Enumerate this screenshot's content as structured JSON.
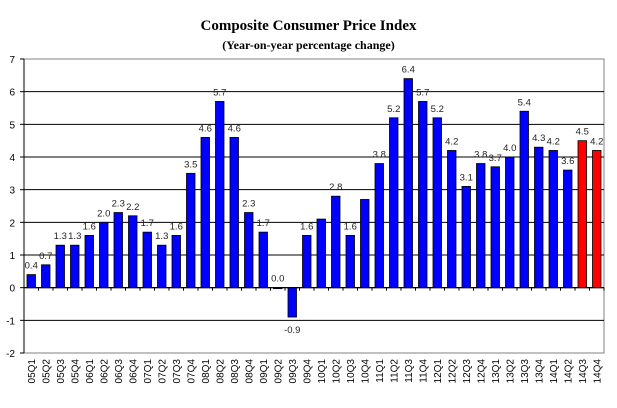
{
  "chart_data": {
    "type": "bar",
    "title": "Composite Consumer Price Index",
    "subtitle": "(Year-on-year percentage change)",
    "xlabel": "",
    "ylabel": "",
    "ylim": [
      -2,
      7
    ],
    "yticks": [
      "-2",
      "-1",
      "0",
      "1",
      "2",
      "3",
      "4",
      "5",
      "6",
      "7"
    ],
    "grid": true,
    "categories": [
      "05Q1",
      "05Q2",
      "05Q3",
      "05Q4",
      "06Q1",
      "06Q2",
      "06Q3",
      "06Q4",
      "07Q1",
      "07Q2",
      "07Q3",
      "07Q4",
      "08Q1",
      "08Q2",
      "08Q3",
      "08Q4",
      "09Q1",
      "09Q2",
      "09Q3",
      "09Q4",
      "10Q1",
      "10Q2",
      "10Q3",
      "10Q4",
      "11Q1",
      "11Q2",
      "11Q3",
      "11Q4",
      "12Q1",
      "12Q2",
      "12Q3",
      "12Q4",
      "13Q1",
      "13Q2",
      "13Q3",
      "13Q4",
      "14Q1",
      "14Q2",
      "14Q3",
      "14Q4"
    ],
    "values": [
      0.4,
      0.7,
      1.3,
      1.3,
      1.6,
      2.0,
      2.3,
      2.2,
      1.7,
      1.3,
      1.6,
      3.5,
      4.6,
      5.7,
      4.6,
      2.3,
      1.7,
      0.0,
      -0.9,
      1.6,
      2.1,
      2.8,
      1.6,
      2.7,
      3.8,
      5.2,
      6.4,
      5.7,
      5.2,
      4.2,
      3.1,
      3.8,
      3.7,
      4.0,
      5.4,
      4.3,
      4.2,
      3.6,
      4.5,
      4.2
    ],
    "data_labels": [
      "0.4",
      "0.7",
      "1.3",
      "1.3",
      "1.6",
      "2.0",
      "2.3",
      "2.2",
      "1.7",
      "1.3",
      "1.6",
      "3.5",
      "4.6",
      "5.7",
      "4.6",
      "2.3",
      "1.7",
      "0.0",
      "-0.9",
      "1.6",
      null,
      "2.8",
      "1.6",
      null,
      "3.8",
      "5.2",
      "6.4",
      "5.7",
      "5.2",
      "4.2",
      "3.1",
      "3.8",
      "3.7",
      "4.0",
      "5.4",
      "4.3",
      "4.2",
      "3.6",
      "4.5",
      "4.2"
    ],
    "colors": {
      "actual": "#0000ff",
      "highlight": "#ff0000"
    },
    "highlighted_categories": [
      "14Q3",
      "14Q4"
    ]
  }
}
